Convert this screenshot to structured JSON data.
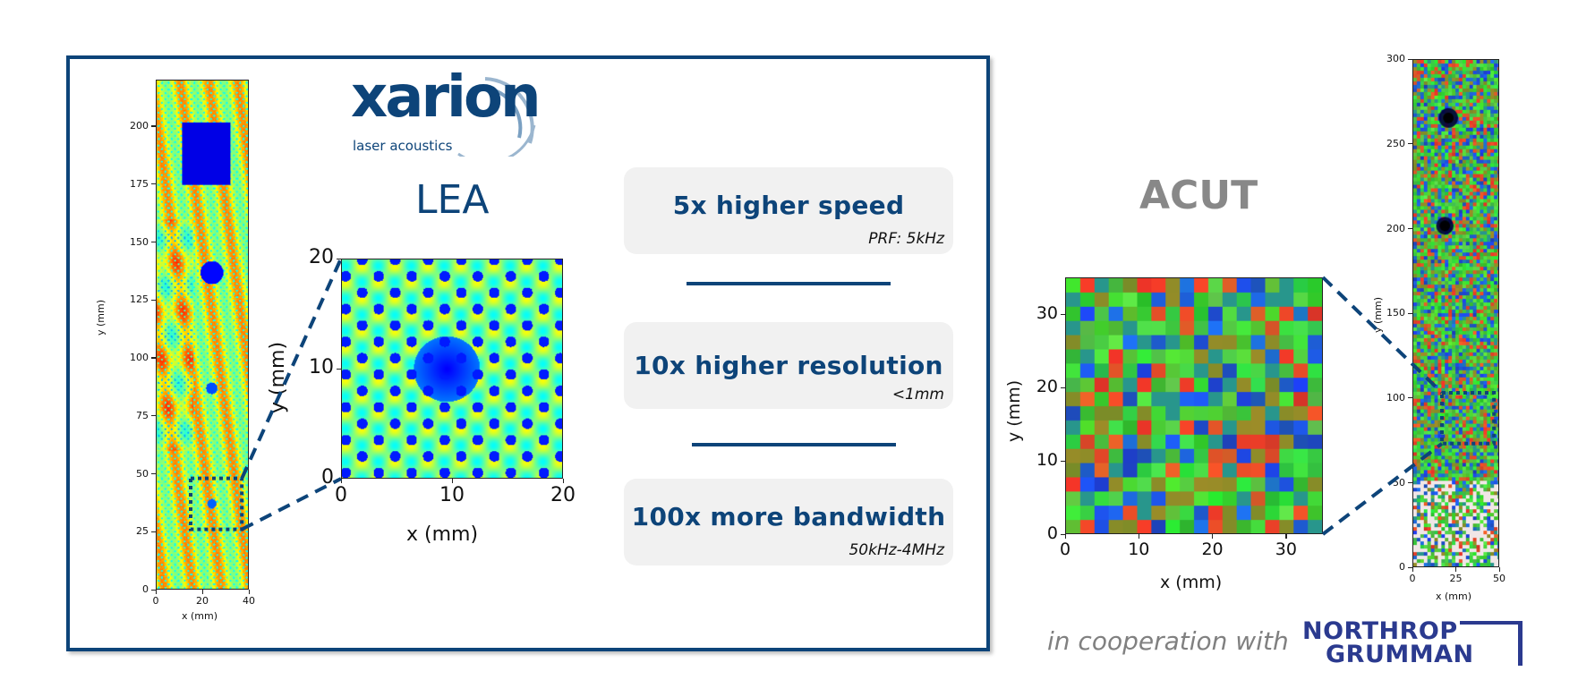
{
  "brand": {
    "logo_word": "xarion",
    "logo_tagline": "laser acoustics",
    "colors": {
      "primary": "#0d4479",
      "grey": "#888888",
      "ng_blue": "#2b3a8f"
    }
  },
  "lea": {
    "title": "LEA",
    "overview_plot": {
      "xlabel": "x (mm)",
      "ylabel": "y (mm)",
      "xticks": [
        "0",
        "20",
        "40"
      ],
      "yticks": [
        "0",
        "25",
        "50",
        "75",
        "100",
        "125",
        "150",
        "175",
        "200"
      ],
      "xlim": [
        0,
        40
      ],
      "ylim": [
        0,
        220
      ],
      "colormap": "jet",
      "roi": {
        "x": [
          15,
          37
        ],
        "y": [
          26,
          48
        ]
      }
    },
    "zoom_plot": {
      "xlabel": "x (mm)",
      "ylabel": "y (mm)",
      "xticks": [
        "0",
        "10",
        "20"
      ],
      "yticks": [
        "0",
        "10",
        "20"
      ],
      "xlim": [
        0,
        20
      ],
      "ylim": [
        0,
        20
      ],
      "colormap": "jet"
    }
  },
  "features": [
    {
      "title": "5x higher speed",
      "subtitle": "PRF: 5kHz"
    },
    {
      "title": "10x higher resolution",
      "subtitle": "<1mm"
    },
    {
      "title": "100x more bandwidth",
      "subtitle": "50kHz-4MHz"
    }
  ],
  "acut": {
    "title": "ACUT",
    "zoom_plot": {
      "xlabel": "x (mm)",
      "ylabel": "y (mm)",
      "xticks": [
        "0",
        "10",
        "20",
        "30"
      ],
      "yticks": [
        "0",
        "10",
        "20",
        "30"
      ],
      "xlim": [
        0,
        35
      ],
      "ylim": [
        0,
        35
      ],
      "colormap": "rgb"
    },
    "overview_plot": {
      "xlabel": "x (mm)",
      "ylabel": "y (mm)",
      "xticks": [
        "0",
        "25",
        "50"
      ],
      "yticks": [
        "0",
        "50",
        "100",
        "150",
        "200",
        "250",
        "300"
      ],
      "xlim": [
        0,
        50
      ],
      "ylim": [
        0,
        300
      ],
      "colormap": "rgb",
      "roi": {
        "x": [
          17,
          47
        ],
        "y": [
          73,
          103
        ]
      }
    }
  },
  "footer": {
    "cooperation_text": "in cooperation with",
    "partner_line1": "NORTHROP",
    "partner_line2": "GRUMMAN"
  }
}
